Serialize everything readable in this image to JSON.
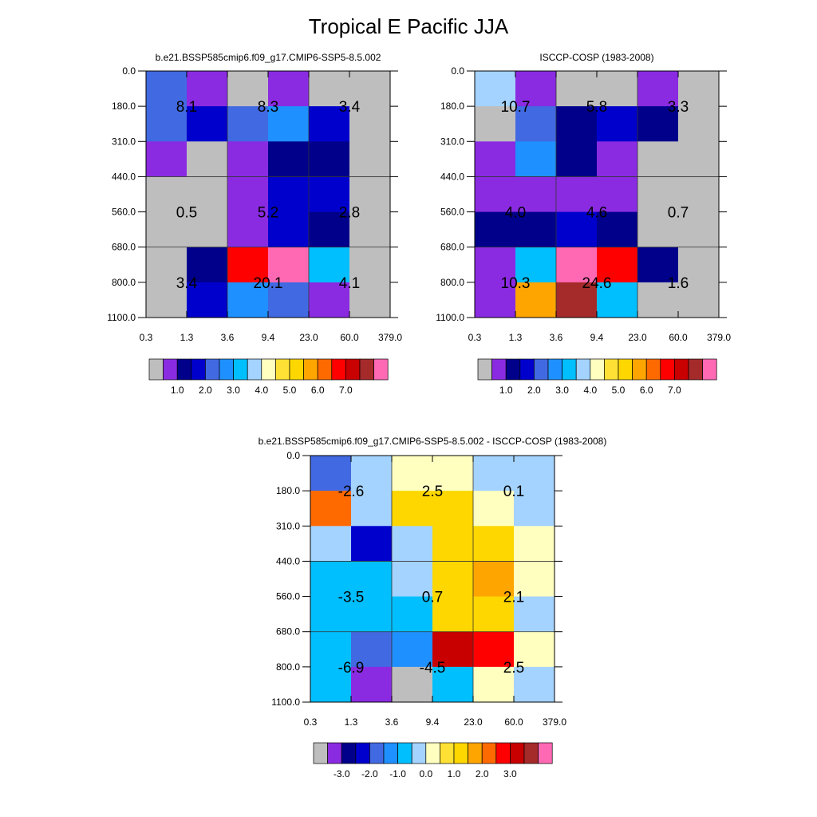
{
  "title": "Tropical E Pacific JJA",
  "colors": {
    "abs_palette": [
      "#bebebe",
      "#8a2be2",
      "#00008b",
      "#0000cd",
      "#4169e1",
      "#1e90ff",
      "#00bfff",
      "#a4d3ff",
      "#ffffc0",
      "#ffe135",
      "#ffd700",
      "#ffa500",
      "#ff6a00",
      "#ff0000",
      "#c80000",
      "#a52a2a",
      "#ff69b4"
    ],
    "diff_palette": [
      "#bebebe",
      "#8a2be2",
      "#00008b",
      "#0000cd",
      "#4169e1",
      "#1e90ff",
      "#00bfff",
      "#a4d3ff",
      "#ffffc0",
      "#ffe135",
      "#ffd700",
      "#ffa500",
      "#ff6a00",
      "#ff0000",
      "#c80000",
      "#a52a2a",
      "#ff69b4"
    ]
  },
  "chart_data": [
    {
      "type": "heatmap",
      "title": "b.e21.BSSP585cmip6.f09_g17.CMIP6-SSP5-8.5.002",
      "x_tick_labels": [
        "0.3",
        "1.3",
        "3.6",
        "9.4",
        "23.0",
        "60.0",
        "379.0"
      ],
      "y_tick_labels": [
        "0.0",
        "180.0",
        "310.0",
        "440.0",
        "560.0",
        "680.0",
        "800.0",
        "1100.0"
      ],
      "cell_color_index": [
        [
          4,
          1,
          0,
          1,
          0,
          0
        ],
        [
          4,
          3,
          4,
          5,
          3,
          0
        ],
        [
          1,
          0,
          1,
          2,
          2,
          0
        ],
        [
          0,
          0,
          1,
          3,
          3,
          0
        ],
        [
          0,
          0,
          1,
          3,
          2,
          0
        ],
        [
          0,
          2,
          13,
          16,
          6,
          0
        ],
        [
          0,
          3,
          5,
          4,
          1,
          0
        ]
      ],
      "block_annotations": [
        {
          "text": "8.1",
          "row": 0,
          "col": 0
        },
        {
          "text": "8.3",
          "row": 0,
          "col": 1
        },
        {
          "text": "3.4",
          "row": 0,
          "col": 2
        },
        {
          "text": "0.5",
          "row": 1,
          "col": 0
        },
        {
          "text": "5.2",
          "row": 1,
          "col": 1
        },
        {
          "text": "2.8",
          "row": 1,
          "col": 2
        },
        {
          "text": "3.4",
          "row": 2,
          "col": 0
        },
        {
          "text": "20.1",
          "row": 2,
          "col": 1
        },
        {
          "text": "4.1",
          "row": 2,
          "col": 2
        }
      ],
      "colorbar_labels": [
        "1.0",
        "2.0",
        "3.0",
        "4.0",
        "5.0",
        "6.0",
        "7.0"
      ]
    },
    {
      "type": "heatmap",
      "title": "ISCCP-COSP (1983-2008)",
      "x_tick_labels": [
        "0.3",
        "1.3",
        "3.6",
        "9.4",
        "23.0",
        "60.0",
        "379.0"
      ],
      "y_tick_labels": [
        "0.0",
        "180.0",
        "310.0",
        "440.0",
        "560.0",
        "680.0",
        "800.0",
        "1100.0"
      ],
      "cell_color_index": [
        [
          7,
          1,
          0,
          0,
          1,
          0
        ],
        [
          0,
          4,
          2,
          3,
          2,
          0
        ],
        [
          1,
          5,
          2,
          1,
          0,
          0
        ],
        [
          1,
          1,
          1,
          1,
          0,
          0
        ],
        [
          2,
          2,
          3,
          2,
          0,
          0
        ],
        [
          1,
          6,
          16,
          13,
          2,
          0
        ],
        [
          1,
          11,
          15,
          6,
          0,
          0
        ]
      ],
      "block_annotations": [
        {
          "text": "10.7",
          "row": 0,
          "col": 0
        },
        {
          "text": "5.8",
          "row": 0,
          "col": 1
        },
        {
          "text": "3.3",
          "row": 0,
          "col": 2
        },
        {
          "text": "4.0",
          "row": 1,
          "col": 0
        },
        {
          "text": "4.6",
          "row": 1,
          "col": 1
        },
        {
          "text": "0.7",
          "row": 1,
          "col": 2
        },
        {
          "text": "10.3",
          "row": 2,
          "col": 0
        },
        {
          "text": "24.6",
          "row": 2,
          "col": 1
        },
        {
          "text": "1.6",
          "row": 2,
          "col": 2
        }
      ],
      "colorbar_labels": [
        "1.0",
        "2.0",
        "3.0",
        "4.0",
        "5.0",
        "6.0",
        "7.0"
      ]
    },
    {
      "type": "heatmap",
      "title": "b.e21.BSSP585cmip6.f09_g17.CMIP6-SSP5-8.5.002 - ISCCP-COSP (1983-2008)",
      "x_tick_labels": [
        "0.3",
        "1.3",
        "3.6",
        "9.4",
        "23.0",
        "60.0",
        "379.0"
      ],
      "y_tick_labels": [
        "0.0",
        "180.0",
        "310.0",
        "440.0",
        "560.0",
        "680.0",
        "800.0",
        "1100.0"
      ],
      "cell_color_index": [
        [
          4,
          7,
          8,
          8,
          7,
          7
        ],
        [
          12,
          7,
          10,
          10,
          8,
          7
        ],
        [
          7,
          3,
          7,
          10,
          10,
          8
        ],
        [
          6,
          6,
          7,
          10,
          11,
          8
        ],
        [
          6,
          6,
          6,
          10,
          10,
          7
        ],
        [
          6,
          4,
          5,
          14,
          13,
          8
        ],
        [
          6,
          1,
          0,
          6,
          8,
          7
        ]
      ],
      "block_annotations": [
        {
          "text": "-2.6",
          "row": 0,
          "col": 0
        },
        {
          "text": "2.5",
          "row": 0,
          "col": 1
        },
        {
          "text": "0.1",
          "row": 0,
          "col": 2
        },
        {
          "text": "-3.5",
          "row": 1,
          "col": 0
        },
        {
          "text": "0.7",
          "row": 1,
          "col": 1
        },
        {
          "text": "2.1",
          "row": 1,
          "col": 2
        },
        {
          "text": "-6.9",
          "row": 2,
          "col": 0
        },
        {
          "text": "-4.5",
          "row": 2,
          "col": 1
        },
        {
          "text": "2.5",
          "row": 2,
          "col": 2
        }
      ],
      "colorbar_labels": [
        "-3.0",
        "-2.0",
        "-1.0",
        "0.0",
        "1.0",
        "2.0",
        "3.0"
      ]
    }
  ]
}
